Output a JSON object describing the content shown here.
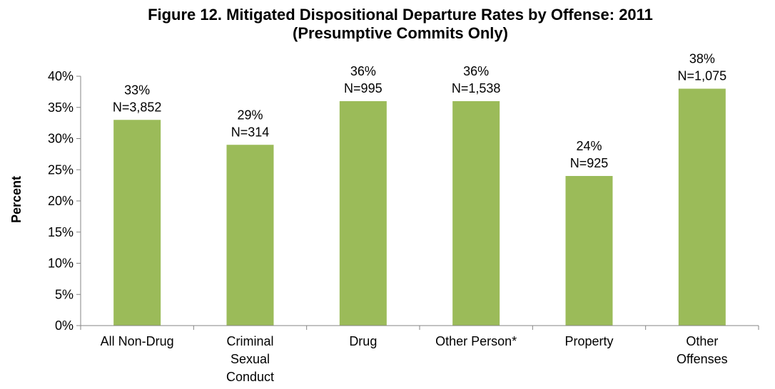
{
  "chart_data": {
    "type": "bar",
    "title": "Figure 12. Mitigated Dispositional Departure Rates by Offense: 2011",
    "subtitle": "(Presumptive Commits Only)",
    "ylabel": "Percent",
    "xlabel": "",
    "ylim": [
      0,
      40
    ],
    "ytick_step": 5,
    "ytick_labels": [
      "0%",
      "5%",
      "10%",
      "15%",
      "20%",
      "25%",
      "30%",
      "35%",
      "40%"
    ],
    "grid": false,
    "legend": "none",
    "bar_color": "#9bbb59",
    "categories": [
      [
        "All Non-Drug"
      ],
      [
        "Criminal",
        "Sexual",
        "Conduct"
      ],
      [
        "Drug"
      ],
      [
        "Other Person*"
      ],
      [
        "Property"
      ],
      [
        "Other",
        "Offenses"
      ]
    ],
    "values": [
      33,
      29,
      36,
      36,
      24,
      38
    ],
    "data_labels": [
      [
        "33%",
        "N=3,852"
      ],
      [
        "29%",
        "N=314"
      ],
      [
        "36%",
        "N=995"
      ],
      [
        "36%",
        "N=1,538"
      ],
      [
        "24%",
        "N=925"
      ],
      [
        "38%",
        "N=1,075"
      ]
    ]
  }
}
